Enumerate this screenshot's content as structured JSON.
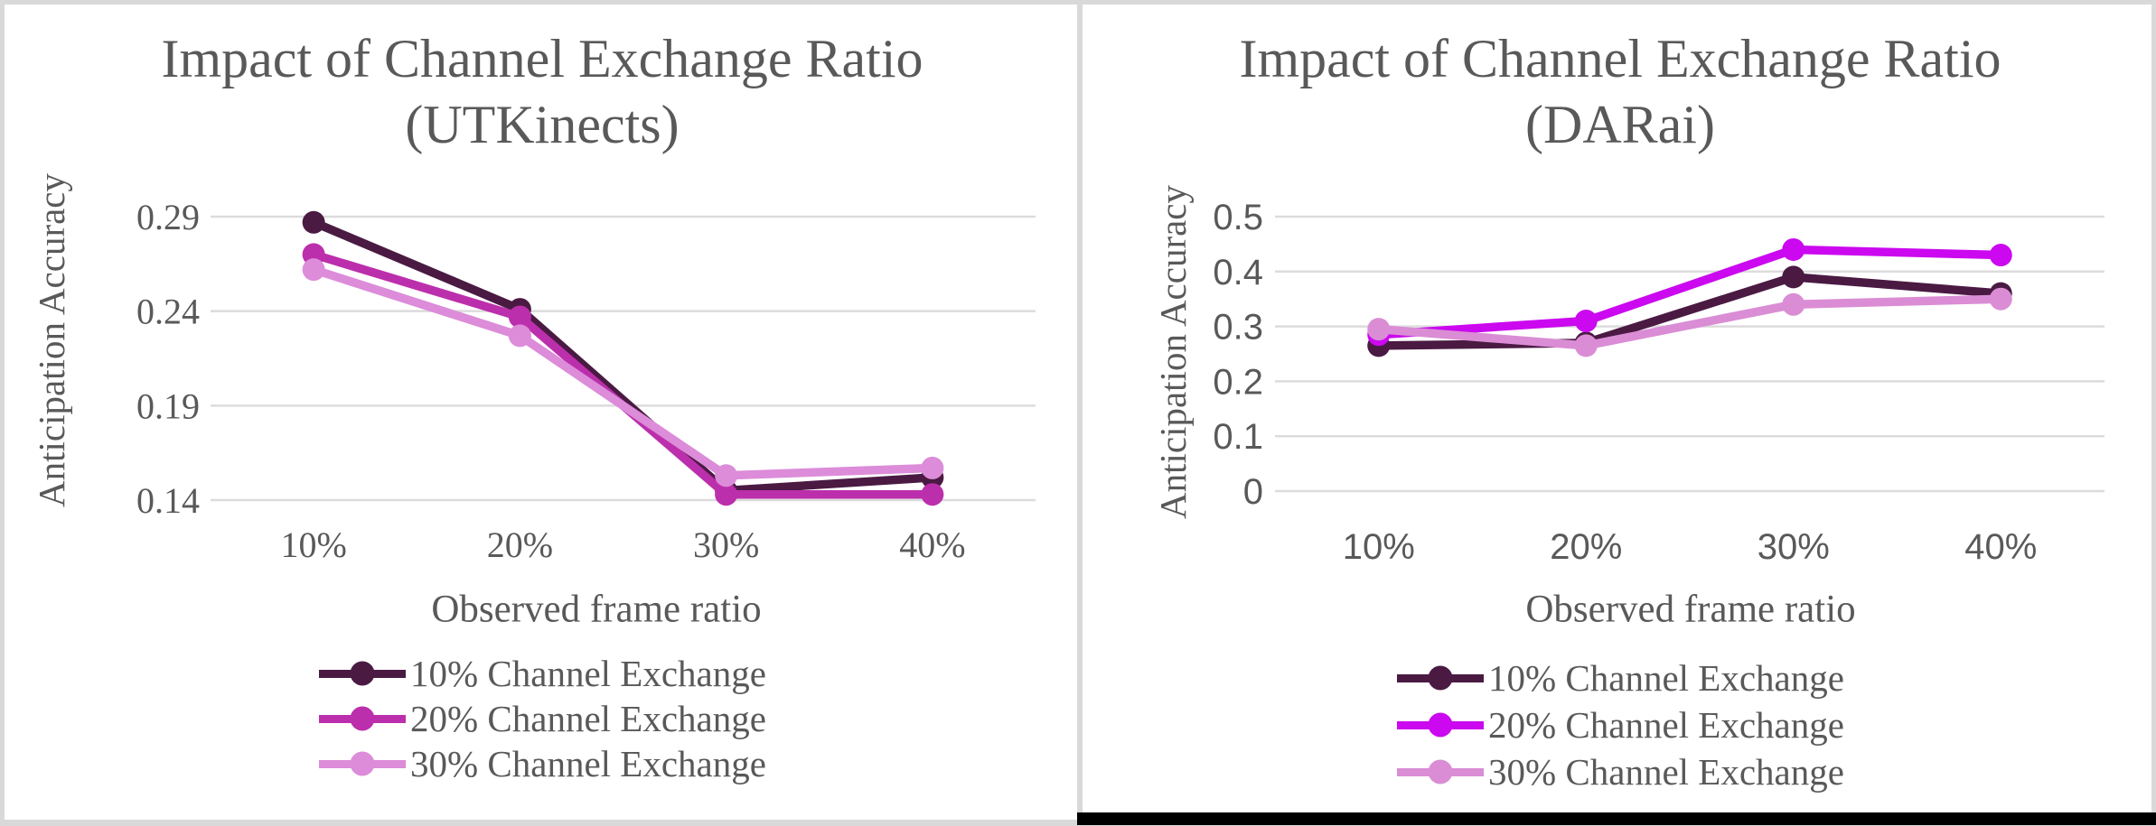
{
  "figure": {
    "background_color": "#FFFFFF",
    "border_color": "#D9D9D9",
    "text_color": "#595959",
    "gridline_color": "#DCDCDC",
    "bottom_bar_color": "#000000"
  },
  "chart_data": [
    {
      "type": "line",
      "title": "Impact of Channel Exchange Ratio",
      "subtitle": "(UTKinects)",
      "xlabel": "Observed frame ratio",
      "ylabel": "Anticipation Accuracy",
      "categories": [
        "10%",
        "20%",
        "30%",
        "40%"
      ],
      "yticks": [
        "0.29",
        "0.24",
        "0.19",
        "0.14"
      ],
      "ytick_values": [
        0.29,
        0.24,
        0.19,
        0.14
      ],
      "ylim": [
        0.14,
        0.29
      ],
      "grid": true,
      "legend_position": "bottom",
      "tick_font": "serif",
      "series": [
        {
          "name": "10% Channel Exchange",
          "color": "#4A1A43",
          "values": [
            0.287,
            0.241,
            0.145,
            0.152
          ]
        },
        {
          "name": "20% Channel Exchange",
          "color": "#BC2FAC",
          "values": [
            0.27,
            0.237,
            0.143,
            0.143
          ]
        },
        {
          "name": "30% Channel Exchange",
          "color": "#DC8CD9",
          "values": [
            0.262,
            0.227,
            0.153,
            0.157
          ]
        }
      ]
    },
    {
      "type": "line",
      "title": "Impact of Channel Exchange Ratio",
      "subtitle": "(DARai)",
      "xlabel": "Observed frame ratio",
      "ylabel": "Anticipation Accuracy",
      "categories": [
        "10%",
        "20%",
        "30%",
        "40%"
      ],
      "yticks": [
        "0.5",
        "0.4",
        "0.3",
        "0.2",
        "0.1",
        "0"
      ],
      "ytick_values": [
        0.5,
        0.4,
        0.3,
        0.2,
        0.1,
        0
      ],
      "ylim": [
        0,
        0.5
      ],
      "grid": true,
      "legend_position": "bottom",
      "tick_font": "sans",
      "series": [
        {
          "name": "10% Channel Exchange",
          "color": "#4A1A43",
          "values": [
            0.265,
            0.27,
            0.39,
            0.36
          ]
        },
        {
          "name": "20% Channel Exchange",
          "color": "#CB08EF",
          "values": [
            0.285,
            0.31,
            0.44,
            0.43
          ]
        },
        {
          "name": "30% Channel Exchange",
          "color": "#DA8DD5",
          "values": [
            0.295,
            0.265,
            0.34,
            0.35
          ]
        }
      ]
    }
  ]
}
